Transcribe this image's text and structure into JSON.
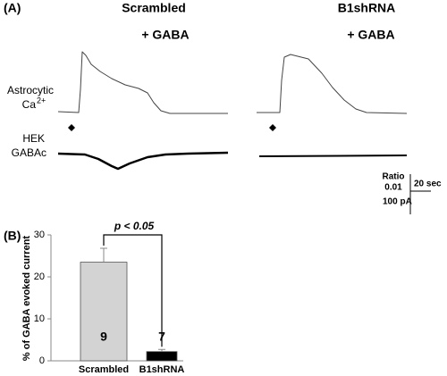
{
  "panel_a": {
    "label": "(A)",
    "condition_1": "Scrambled",
    "condition_1_treatment": "+ GABA",
    "condition_2": "B1shRNA",
    "condition_2_treatment": "+ GABA",
    "trace_1_label_line1": "Astrocytic",
    "trace_1_label_ca": "Ca",
    "trace_1_label_sup": "2+",
    "trace_2_label_line1": "HEK",
    "trace_2_label_line2": "GABAc",
    "scale_ratio": "Ratio",
    "scale_ratio_value": "0.01",
    "scale_time": "20 sec",
    "scale_current": "100 pA"
  },
  "chart_data": {
    "type": "bar",
    "panel_label": "(B)",
    "y_label": "% of GABA evoked current",
    "categories": [
      "Scrambled",
      "B1shRNA"
    ],
    "values": [
      23.5,
      2.2
    ],
    "errors": [
      3.3,
      0.5
    ],
    "colors": [
      "#d3d3d3",
      "#000000"
    ],
    "n_labels": [
      "9",
      "7"
    ],
    "annotation": "p < 0.05",
    "ylim": [
      0,
      30
    ],
    "yticks": [
      0,
      10,
      20,
      30
    ]
  }
}
